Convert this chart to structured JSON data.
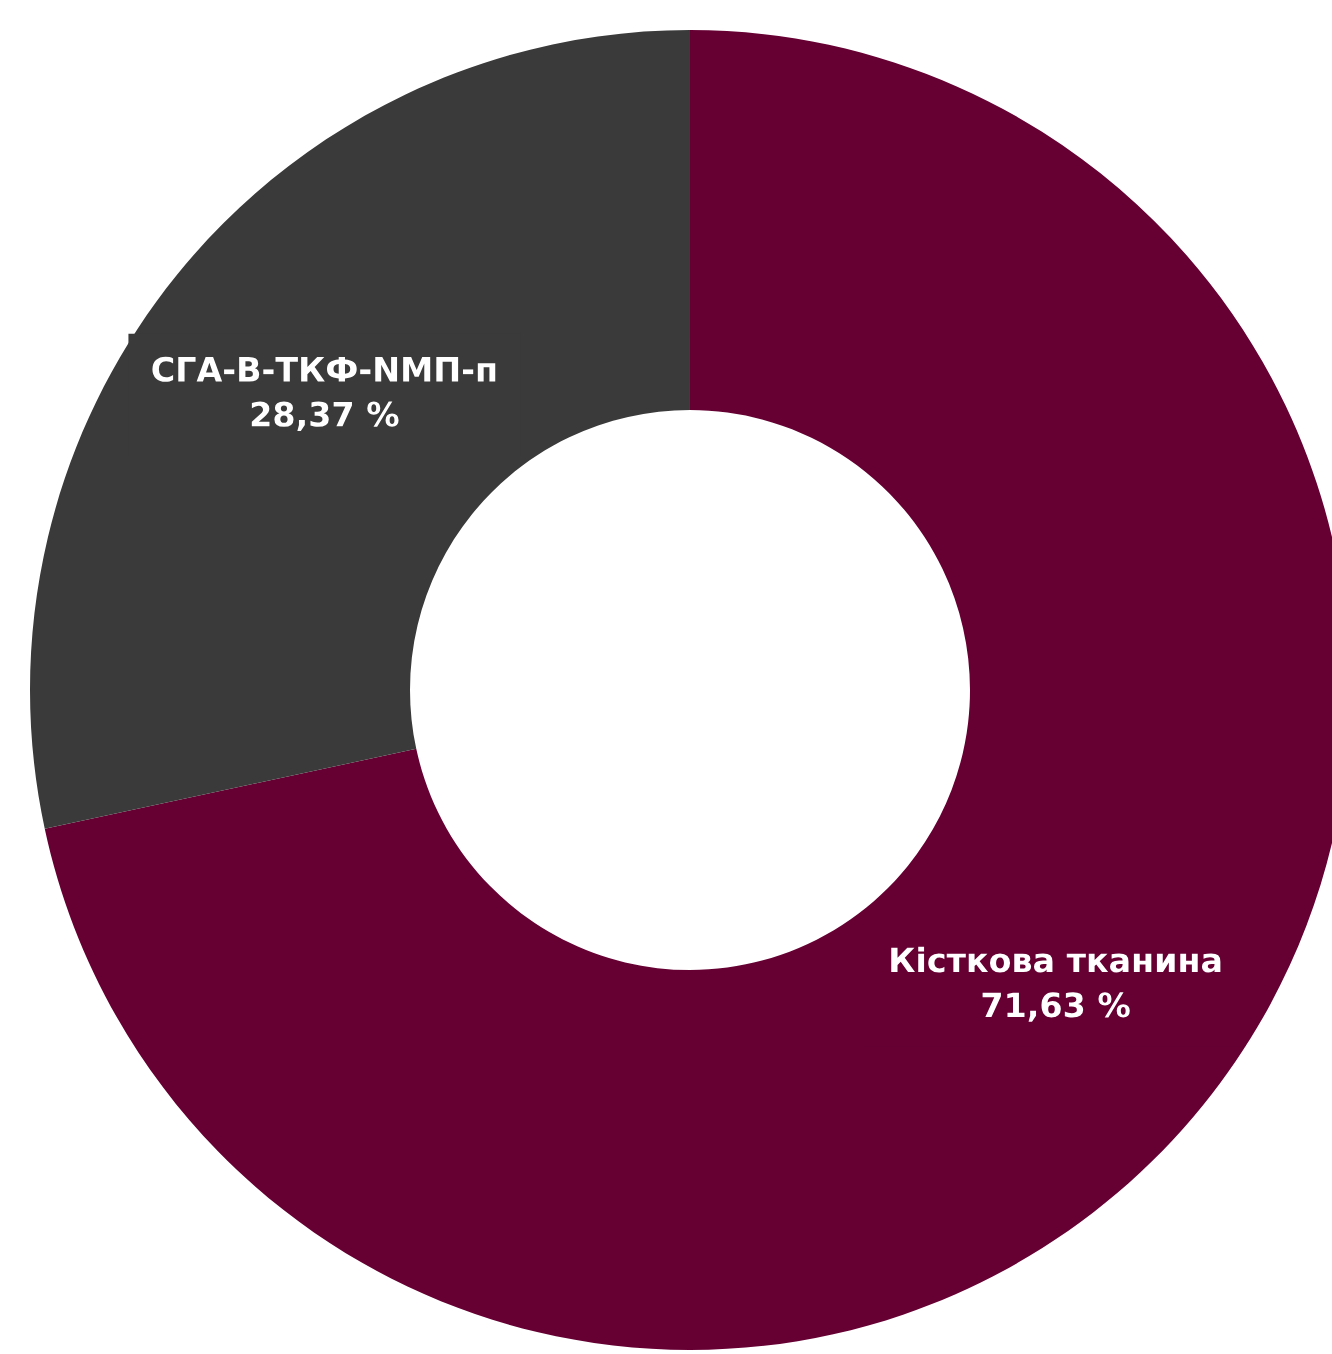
{
  "chart_data": {
    "type": "donut",
    "categories": [
      "Кісткова тканина",
      "СГА-В-ТКФ-NМП-п"
    ],
    "values": [
      71.63,
      28.37
    ],
    "value_labels": [
      "71,63 %",
      "28,37 %"
    ],
    "colors": [
      "#660033",
      "#3a3a3a"
    ],
    "legend": false
  }
}
